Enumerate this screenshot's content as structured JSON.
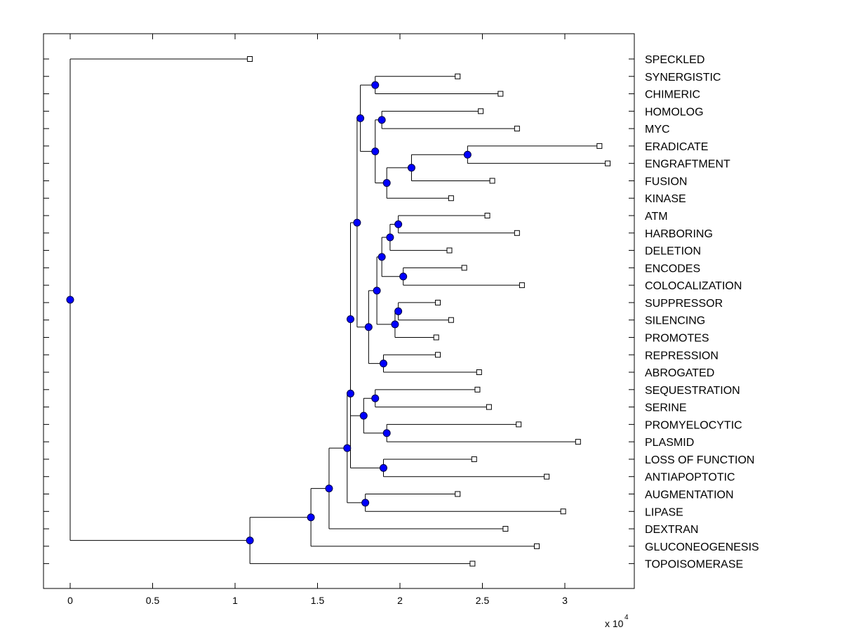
{
  "chart_data": {
    "type": "dendrogram",
    "orientation": "horizontal",
    "xlim": [
      -0.16,
      3.42
    ],
    "x_ticks": [
      0,
      0.5,
      1,
      1.5,
      2,
      2.5,
      3
    ],
    "x_tick_labels": [
      "0",
      "0.5",
      "1",
      "1.5",
      "2",
      "2.5",
      "3"
    ],
    "x_multiplier_base": "x 10",
    "x_multiplier_exponent": "4",
    "colors": {
      "internal_node": "#0000ff",
      "leaf_marker": "#ffffff",
      "line": "#000000"
    },
    "leaves": [
      {
        "label": "SPECKLED",
        "x": 1.09
      },
      {
        "label": "SYNERGISTIC",
        "x": 2.35
      },
      {
        "label": "CHIMERIC",
        "x": 2.61
      },
      {
        "label": "HOMOLOG",
        "x": 2.49
      },
      {
        "label": "MYC",
        "x": 2.71
      },
      {
        "label": "ERADICATE",
        "x": 3.21
      },
      {
        "label": "ENGRAFTMENT",
        "x": 3.26
      },
      {
        "label": "FUSION",
        "x": 2.56
      },
      {
        "label": "KINASE",
        "x": 2.31
      },
      {
        "label": "ATM",
        "x": 2.53
      },
      {
        "label": "HARBORING",
        "x": 2.71
      },
      {
        "label": "DELETION",
        "x": 2.3
      },
      {
        "label": "ENCODES",
        "x": 2.39
      },
      {
        "label": "COLOCALIZATION",
        "x": 2.74
      },
      {
        "label": "SUPPRESSOR",
        "x": 2.23
      },
      {
        "label": "SILENCING",
        "x": 2.31
      },
      {
        "label": "PROMOTES",
        "x": 2.22
      },
      {
        "label": "REPRESSION",
        "x": 2.23
      },
      {
        "label": "ABROGATED",
        "x": 2.48
      },
      {
        "label": "SEQUESTRATION",
        "x": 2.47
      },
      {
        "label": "SERINE",
        "x": 2.54
      },
      {
        "label": "PROMYELOCYTIC",
        "x": 2.72
      },
      {
        "label": "PLASMID",
        "x": 3.08
      },
      {
        "label": "LOSS OF FUNCTION",
        "x": 2.45
      },
      {
        "label": "ANTIAPOPTOTIC",
        "x": 2.89
      },
      {
        "label": "AUGMENTATION",
        "x": 2.35
      },
      {
        "label": "LIPASE",
        "x": 2.99
      },
      {
        "label": "DEXTRAN",
        "x": 2.64
      },
      {
        "label": "GLUCONEOGENESIS",
        "x": 2.83
      },
      {
        "label": "TOPOISOMERASE",
        "x": 2.44
      }
    ],
    "nodes": [
      {
        "id": "n1",
        "x": 1.85,
        "children": [
          "L1",
          "L2"
        ]
      },
      {
        "id": "n2",
        "x": 1.89,
        "children": [
          "L3",
          "L4"
        ]
      },
      {
        "id": "n3",
        "x": 2.41,
        "children": [
          "L5",
          "L6"
        ]
      },
      {
        "id": "n4",
        "x": 2.07,
        "children": [
          "n3",
          "L7"
        ]
      },
      {
        "id": "n5",
        "x": 1.92,
        "children": [
          "n4",
          "L8"
        ]
      },
      {
        "id": "n6",
        "x": 1.85,
        "children": [
          "n2",
          "n5"
        ]
      },
      {
        "id": "n7",
        "x": 1.76,
        "children": [
          "n1",
          "n6"
        ]
      },
      {
        "id": "n8",
        "x": 1.99,
        "children": [
          "L9",
          "L10"
        ]
      },
      {
        "id": "n9",
        "x": 1.94,
        "children": [
          "n8",
          "L11"
        ]
      },
      {
        "id": "n10",
        "x": 2.02,
        "children": [
          "L12",
          "L13"
        ]
      },
      {
        "id": "n11",
        "x": 1.89,
        "children": [
          "n9",
          "n10"
        ]
      },
      {
        "id": "n12",
        "x": 1.99,
        "children": [
          "L14",
          "L15"
        ]
      },
      {
        "id": "n13",
        "x": 1.97,
        "children": [
          "n12",
          "L16"
        ]
      },
      {
        "id": "n14",
        "x": 1.86,
        "children": [
          "n11",
          "n13"
        ]
      },
      {
        "id": "n15",
        "x": 1.9,
        "children": [
          "L17",
          "L18"
        ]
      },
      {
        "id": "n16",
        "x": 1.81,
        "children": [
          "n14",
          "n15"
        ]
      },
      {
        "id": "n17",
        "x": 1.74,
        "children": [
          "n7",
          "n16"
        ]
      },
      {
        "id": "n18",
        "x": 1.85,
        "children": [
          "L19",
          "L20"
        ]
      },
      {
        "id": "n19",
        "x": 1.92,
        "children": [
          "L21",
          "L22"
        ]
      },
      {
        "id": "n20",
        "x": 1.78,
        "children": [
          "n18",
          "n19"
        ]
      },
      {
        "id": "n21",
        "x": 1.7,
        "children": [
          "n17",
          "n20"
        ]
      },
      {
        "id": "n22",
        "x": 1.9,
        "children": [
          "L23",
          "L24"
        ]
      },
      {
        "id": "n23",
        "x": 1.7,
        "children": [
          "n21",
          "n22"
        ]
      },
      {
        "id": "n24",
        "x": 1.79,
        "children": [
          "L25",
          "L26"
        ]
      },
      {
        "id": "n25",
        "x": 1.68,
        "children": [
          "n23",
          "n24"
        ]
      },
      {
        "id": "n26",
        "x": 1.57,
        "children": [
          "n25",
          "L27"
        ]
      },
      {
        "id": "n27",
        "x": 1.46,
        "children": [
          "n26",
          "L28"
        ]
      },
      {
        "id": "n28",
        "x": 1.09,
        "children": [
          "n27",
          "L29"
        ]
      },
      {
        "id": "n29",
        "x": 0.0,
        "children": [
          "L0",
          "n28"
        ]
      }
    ]
  }
}
